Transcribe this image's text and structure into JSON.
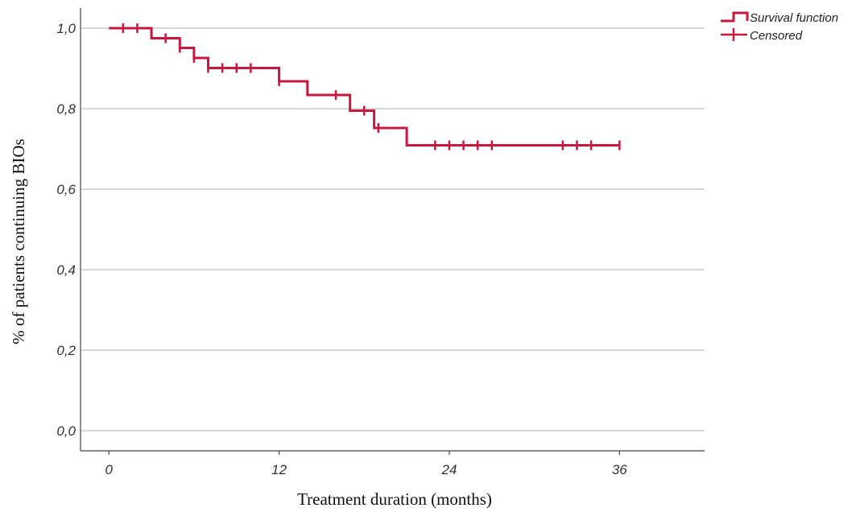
{
  "chart_data": {
    "type": "line",
    "xlabel": "Treatment duration (months)",
    "ylabel": "% of patients continuing BIOs",
    "xlim": [
      -2,
      42
    ],
    "ylim": [
      -0.05,
      1.05
    ],
    "x_ticks": [
      0,
      12,
      24,
      36
    ],
    "x_tick_labels": [
      "0",
      "12",
      "24",
      "36"
    ],
    "y_ticks": [
      0.0,
      0.2,
      0.4,
      0.6,
      0.8,
      1.0
    ],
    "y_tick_labels": [
      "0,0",
      "0,2",
      "0,4",
      "0,6",
      "0,8",
      "1,0"
    ],
    "grid": true,
    "legend_position": "top-right",
    "color": "#c8173f",
    "series": [
      {
        "name": "Survival function",
        "step": true,
        "x": [
          0,
          3,
          5,
          6,
          7,
          12,
          14,
          17,
          18.7,
          21,
          36
        ],
        "y": [
          1.0,
          0.975,
          0.951,
          0.926,
          0.901,
          0.868,
          0.834,
          0.795,
          0.752,
          0.709,
          0.709
        ]
      }
    ],
    "censored": {
      "name": "Censored",
      "x": [
        1,
        2,
        4,
        5,
        6,
        7,
        8,
        9,
        10,
        12,
        16,
        18,
        19,
        23,
        24,
        25,
        26,
        27,
        32,
        33,
        34,
        36
      ],
      "y": [
        1.0,
        1.0,
        0.975,
        0.951,
        0.926,
        0.901,
        0.901,
        0.901,
        0.901,
        0.868,
        0.834,
        0.795,
        0.752,
        0.709,
        0.709,
        0.709,
        0.709,
        0.709,
        0.709,
        0.709,
        0.709,
        0.709
      ]
    }
  }
}
